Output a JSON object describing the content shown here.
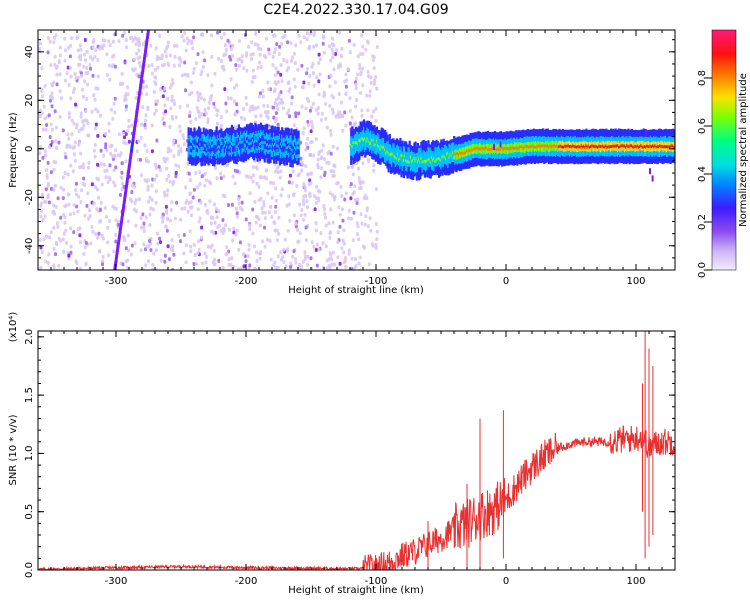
{
  "title": "C2E4.2022.330.17.04.G09",
  "chart_data": [
    {
      "type": "heatmap",
      "xlabel": "Height of straight line (km)",
      "ylabel": "Frequency (Hz)",
      "xlim": [
        -360,
        130
      ],
      "ylim": [
        -50,
        49
      ],
      "xticks": [
        -300,
        -200,
        -100,
        0,
        100
      ],
      "yticks": [
        -40,
        -20,
        0,
        20,
        40
      ],
      "colorbar": {
        "label": "Normalized spectral amplitude",
        "range": [
          0.0,
          1.0
        ],
        "ticks": [
          0.0,
          0.2,
          0.4,
          0.6,
          0.8
        ],
        "colors": [
          "#f2ecfc",
          "#d9c8f7",
          "#9f6bf0",
          "#7a1cf2",
          "#2a2cff",
          "#00c8ff",
          "#00ff90",
          "#7cff00",
          "#ffe000",
          "#ff8000",
          "#ff1010",
          "#ff1a78"
        ]
      },
      "features": [
        {
          "name": "noise",
          "x": [
            -360,
            -100
          ],
          "y": [
            -50,
            49
          ],
          "level": 0.15
        },
        {
          "name": "oblique line",
          "points": [
            [
              -301,
              -50
            ],
            [
              -275,
              49
            ]
          ],
          "level": 0.25
        },
        {
          "name": "signal trace",
          "points": [
            [
              -245,
              1
            ],
            [
              -225,
              1
            ],
            [
              -205,
              2
            ],
            [
              -190,
              3
            ],
            [
              -175,
              1
            ],
            [
              -160,
              0
            ],
            [
              -120,
              1
            ],
            [
              -110,
              4
            ],
            [
              -100,
              2
            ],
            [
              -90,
              -2
            ],
            [
              -80,
              -4
            ],
            [
              -70,
              -5
            ],
            [
              -55,
              -4
            ],
            [
              -45,
              -3
            ],
            [
              -35,
              -2
            ],
            [
              -25,
              0
            ],
            [
              -10,
              0
            ],
            [
              0,
              0
            ],
            [
              20,
              1
            ],
            [
              50,
              1
            ],
            [
              80,
              1
            ],
            [
              100,
              1
            ],
            [
              130,
              1
            ]
          ],
          "level": [
            0.4,
            0.95
          ]
        }
      ]
    },
    {
      "type": "line",
      "xlabel": "Height of straight line (km)",
      "ylabel": "SNR (10 * v/v)",
      "yscale_label": "(x10⁴)",
      "xlim": [
        -360,
        130
      ],
      "ylim": [
        0.0,
        2.05
      ],
      "xticks": [
        -300,
        -200,
        -100,
        0,
        100
      ],
      "yticks": [
        0.0,
        0.5,
        1.0,
        1.5,
        2.0
      ],
      "ytick_labels": [
        "0.0",
        "0.5",
        "1.0",
        "1.5",
        "2.0"
      ],
      "series": [
        {
          "color": "#e83030",
          "x": [
            -360,
            -300,
            -250,
            -200,
            -150,
            -120,
            -100,
            -90,
            -80,
            -70,
            -60,
            -50,
            -40,
            -30,
            -20,
            -10,
            0,
            10,
            20,
            30,
            40,
            50,
            60,
            70,
            80,
            90,
            100,
            105,
            110,
            115,
            120,
            130
          ],
          "y": [
            0.005,
            0.02,
            0.03,
            0.02,
            0.015,
            0.01,
            0.02,
            0.06,
            0.12,
            0.16,
            0.22,
            0.27,
            0.35,
            0.4,
            0.47,
            0.52,
            0.6,
            0.75,
            0.88,
            0.98,
            1.05,
            1.08,
            1.1,
            1.1,
            1.1,
            1.12,
            1.13,
            1.15,
            1.05,
            1.08,
            1.1,
            1.1
          ],
          "spikes": [
            [
              -30,
              0.0,
              0.74
            ],
            [
              -20,
              0.02,
              1.3
            ],
            [
              -2,
              0.1,
              1.37
            ],
            [
              -60,
              0.0,
              0.42
            ],
            [
              105,
              0.5,
              1.6
            ],
            [
              107,
              0.1,
              2.05
            ],
            [
              110,
              0.2,
              1.9
            ],
            [
              113,
              0.3,
              1.75
            ]
          ]
        }
      ]
    }
  ]
}
